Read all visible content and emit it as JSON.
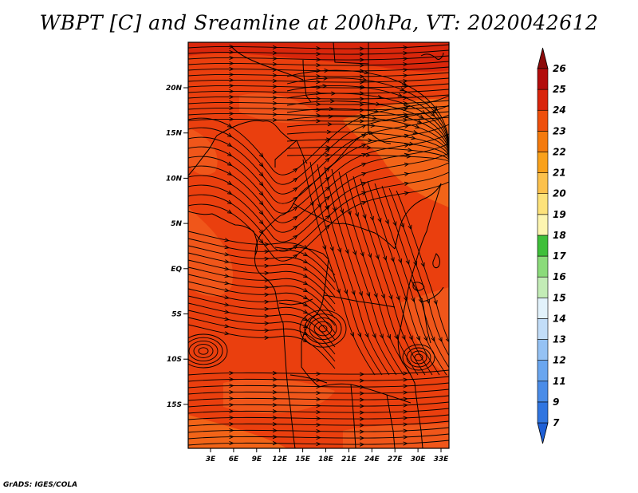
{
  "title": "WBPT [C] and Sreamline at 200hPa, VT: 2020042612",
  "credit": "GrADS: IGES/COLA",
  "map": {
    "lat_labels": [
      "20N",
      "15N",
      "10N",
      "5N",
      "EQ",
      "5S",
      "10S",
      "15S"
    ],
    "lon_labels": [
      "3E",
      "6E",
      "9E",
      "12E",
      "15E",
      "18E",
      "21E",
      "24E",
      "27E",
      "30E",
      "33E"
    ]
  },
  "colorbar": {
    "labels": [
      "7",
      "9",
      "11",
      "12",
      "13",
      "14",
      "15",
      "16",
      "17",
      "18",
      "19",
      "20",
      "21",
      "22",
      "23",
      "24",
      "25",
      "26"
    ],
    "colors": [
      "#1e5fd6",
      "#3075e0",
      "#4a8ce8",
      "#6aa6ef",
      "#95c2f4",
      "#c2ddf8",
      "#e2f2fb",
      "#c3ecb6",
      "#8bdb7a",
      "#3fbf3a",
      "#fdf5b0",
      "#fde27a",
      "#fcc14c",
      "#f9a11b",
      "#f47a0d",
      "#ee4f0c",
      "#d9240b",
      "#b30c0b",
      "#8c0a0a"
    ]
  }
}
